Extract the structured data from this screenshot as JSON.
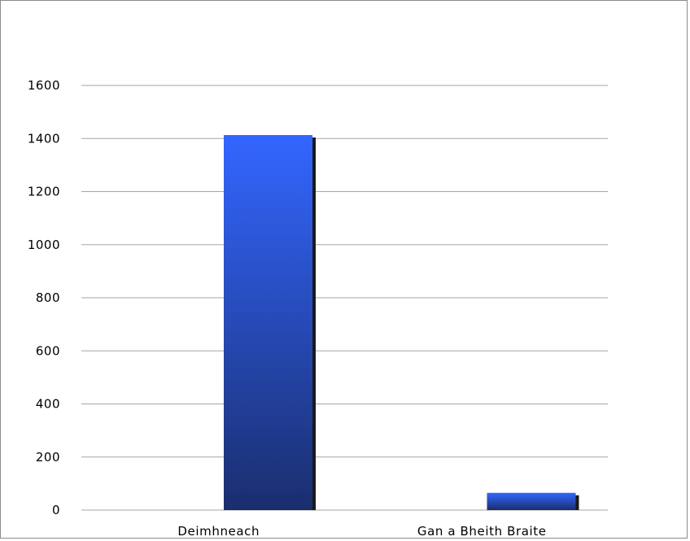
{
  "chart_data": {
    "type": "bar",
    "title": "",
    "xlabel": "",
    "ylabel": "",
    "categories": [
      "Deimhneach",
      "Gan a Bheith Braite"
    ],
    "values": [
      1413,
      65
    ],
    "ylim": [
      0,
      1600
    ],
    "yticks": [
      0,
      200,
      400,
      600,
      800,
      1000,
      1200,
      1400,
      1600
    ],
    "ytick_labels": [
      "0",
      "200",
      "400",
      "600",
      "800",
      "1000",
      "1200",
      "1400",
      "1600"
    ],
    "grid": true,
    "legend": "none",
    "colors": {
      "bar_top": "#3366ff",
      "bar_bottom": "#1a2e6e",
      "bar_shadow": "#1a1a1a",
      "grid": "#a6a6a6",
      "frame": "#8c8c8c"
    }
  }
}
